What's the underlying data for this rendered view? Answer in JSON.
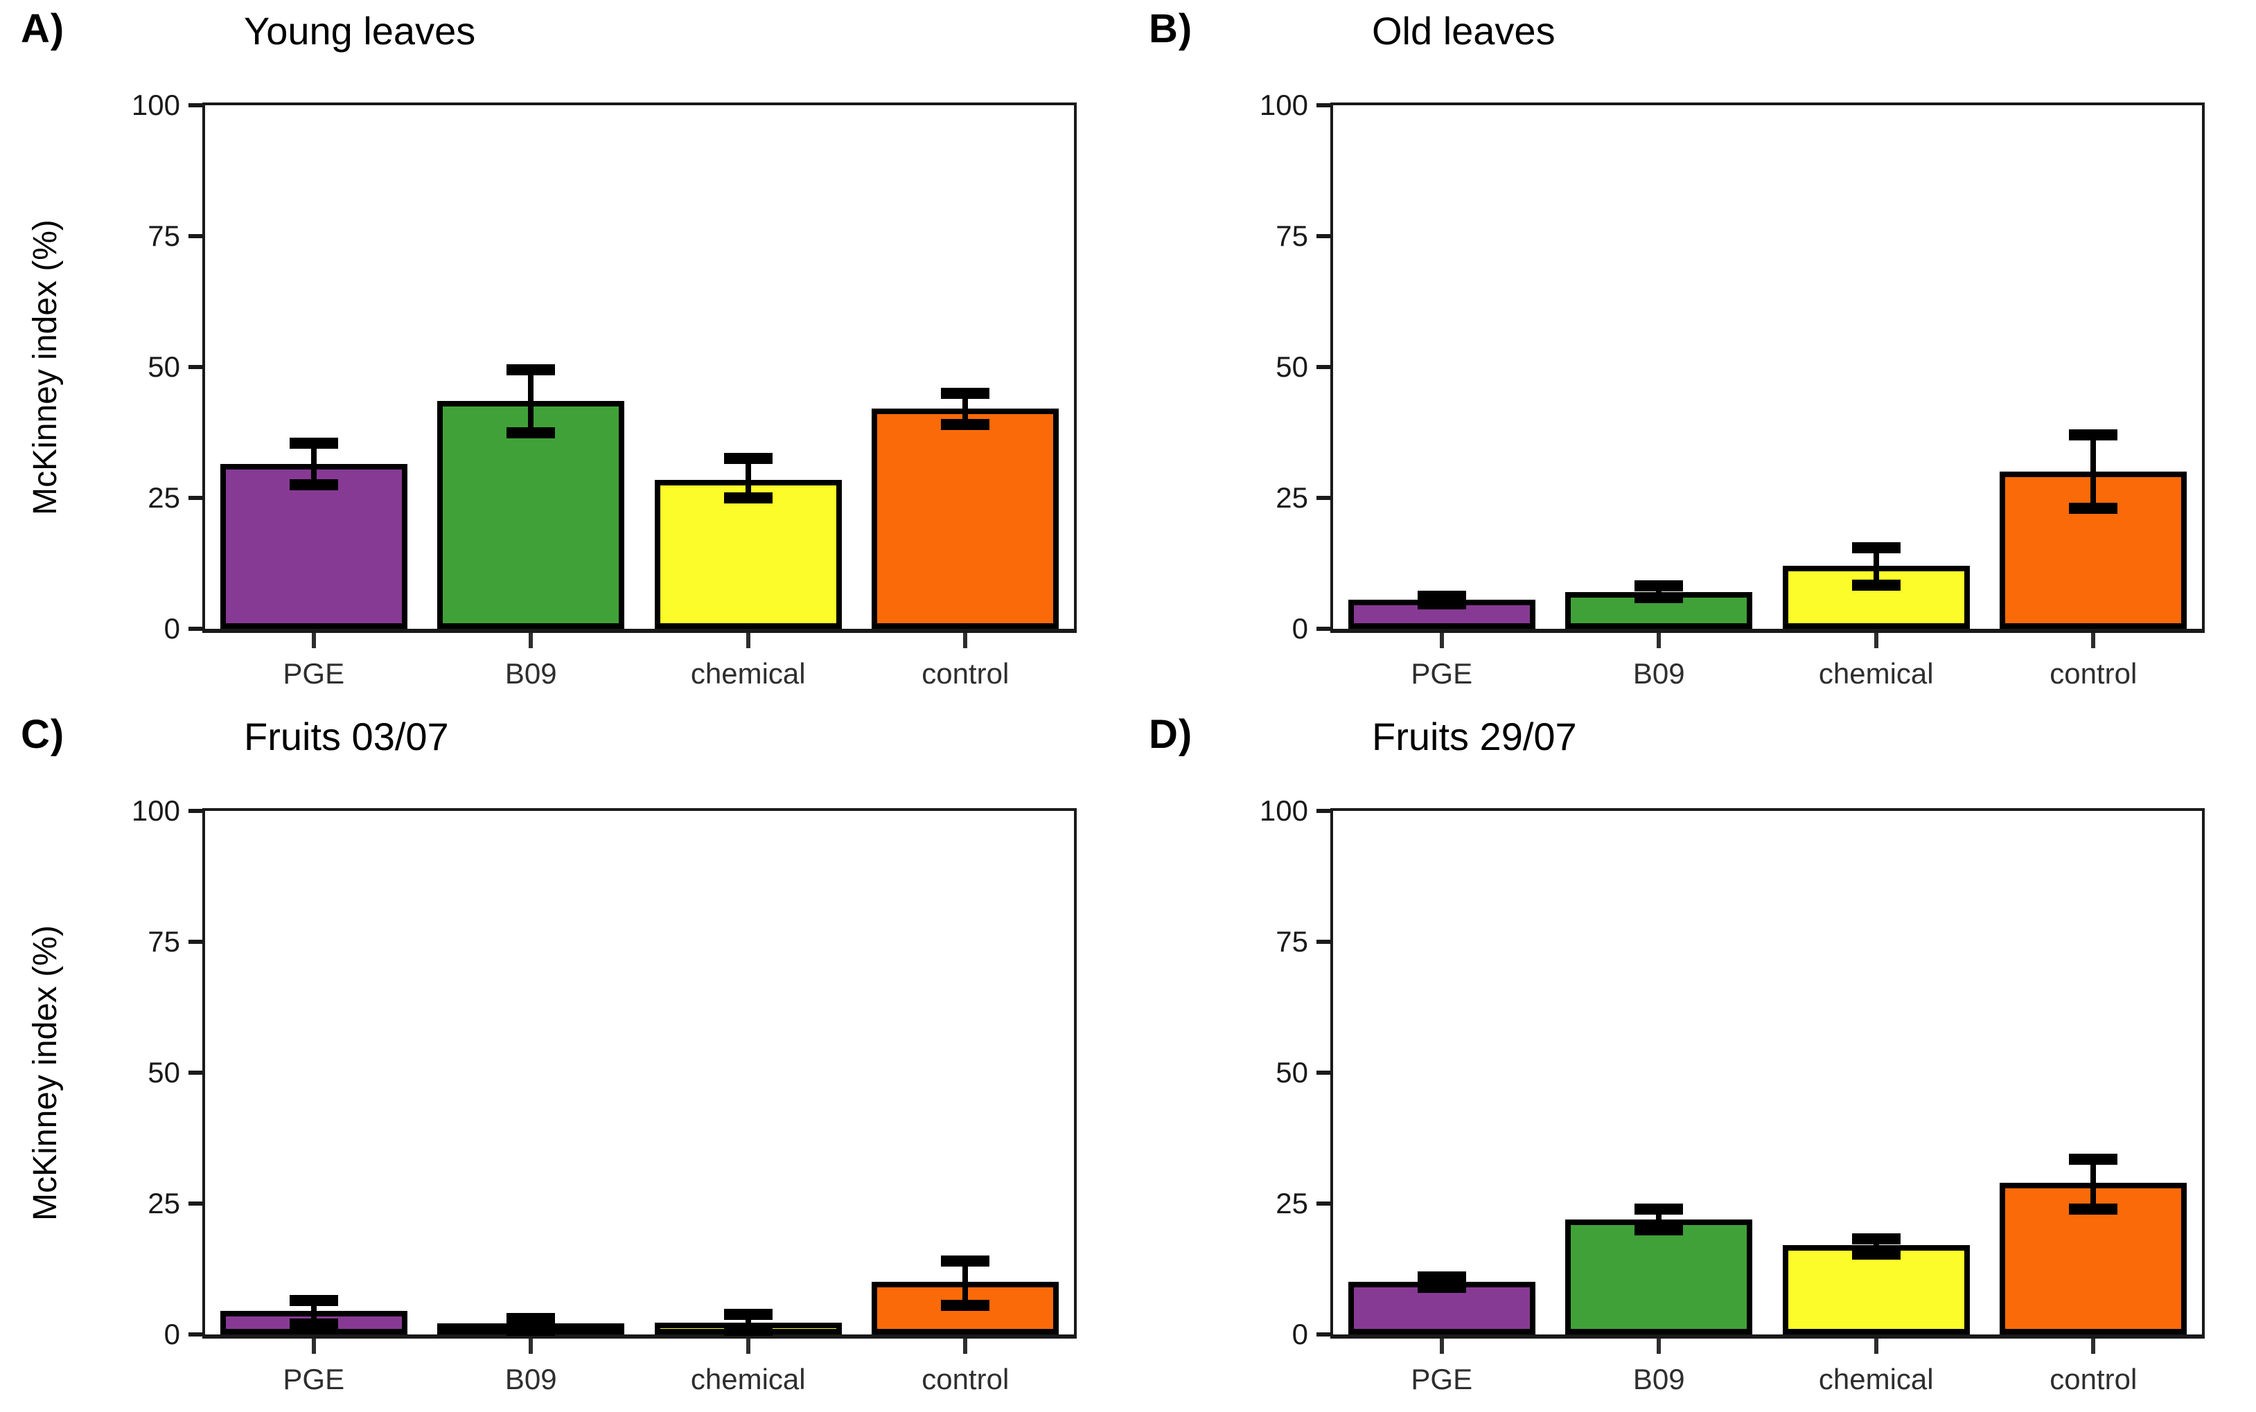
{
  "figure": {
    "background": "#FFFFFF",
    "axis_color": "#1A1A1A",
    "y_axis_title": "McKinney index (%)"
  },
  "chart_data": [
    {
      "type": "bar",
      "panel_letter": "A)",
      "title": "Young leaves",
      "categories": [
        "PGE",
        "B09",
        "chemical",
        "control"
      ],
      "values": [
        31.5,
        43.5,
        28.5,
        42
      ],
      "error_low": [
        27.5,
        37.5,
        25,
        39
      ],
      "error_high": [
        35.5,
        49.5,
        32.5,
        45
      ],
      "bar_colors": [
        "#873A94",
        "#40A139",
        "#FCFC2A",
        "#FB6A09"
      ],
      "bar_outline": "#000000",
      "ylabel": "McKinney index (%)",
      "xlabel": "",
      "ylim": [
        0,
        100
      ],
      "yticks": [
        0,
        25,
        50,
        75,
        100
      ],
      "grid": false,
      "legend": "none"
    },
    {
      "type": "bar",
      "panel_letter": "B)",
      "title": "Old leaves",
      "categories": [
        "PGE",
        "B09",
        "chemical",
        "control"
      ],
      "values": [
        5.5,
        7,
        12,
        30
      ],
      "error_low": [
        4.8,
        6,
        8.3,
        23
      ],
      "error_high": [
        6.2,
        8.2,
        15.5,
        37
      ],
      "bar_colors": [
        "#873A94",
        "#40A139",
        "#FCFC2A",
        "#FB6A09"
      ],
      "bar_outline": "#000000",
      "ylabel": "",
      "xlabel": "",
      "ylim": [
        0,
        100
      ],
      "yticks": [
        0,
        25,
        50,
        75,
        100
      ],
      "grid": false,
      "legend": "none"
    },
    {
      "type": "bar",
      "panel_letter": "C)",
      "title": "Fruits 03/07",
      "categories": [
        "PGE",
        "B09",
        "chemical",
        "control"
      ],
      "values": [
        4.5,
        2,
        2.2,
        10
      ],
      "error_low": [
        2,
        0.8,
        0.8,
        5.5
      ],
      "error_high": [
        6.5,
        3,
        3.8,
        14
      ],
      "bar_colors": [
        "#873A94",
        "#40A139",
        "#FCFC2A",
        "#FB6A09"
      ],
      "bar_outline": "#000000",
      "ylabel": "McKinney index (%)",
      "xlabel": "",
      "ylim": [
        0,
        100
      ],
      "yticks": [
        0,
        25,
        50,
        75,
        100
      ],
      "grid": false,
      "legend": "none"
    },
    {
      "type": "bar",
      "panel_letter": "D)",
      "title": "Fruits 29/07",
      "categories": [
        "PGE",
        "B09",
        "chemical",
        "control"
      ],
      "values": [
        10,
        22,
        17,
        29
      ],
      "error_low": [
        9,
        20,
        15.3,
        24
      ],
      "error_high": [
        11,
        24,
        18.3,
        33.5
      ],
      "bar_colors": [
        "#873A94",
        "#40A139",
        "#FCFC2A",
        "#FB6A09"
      ],
      "bar_outline": "#000000",
      "ylabel": "",
      "xlabel": "",
      "ylim": [
        0,
        100
      ],
      "yticks": [
        0,
        25,
        50,
        75,
        100
      ],
      "grid": false,
      "legend": "none"
    }
  ]
}
